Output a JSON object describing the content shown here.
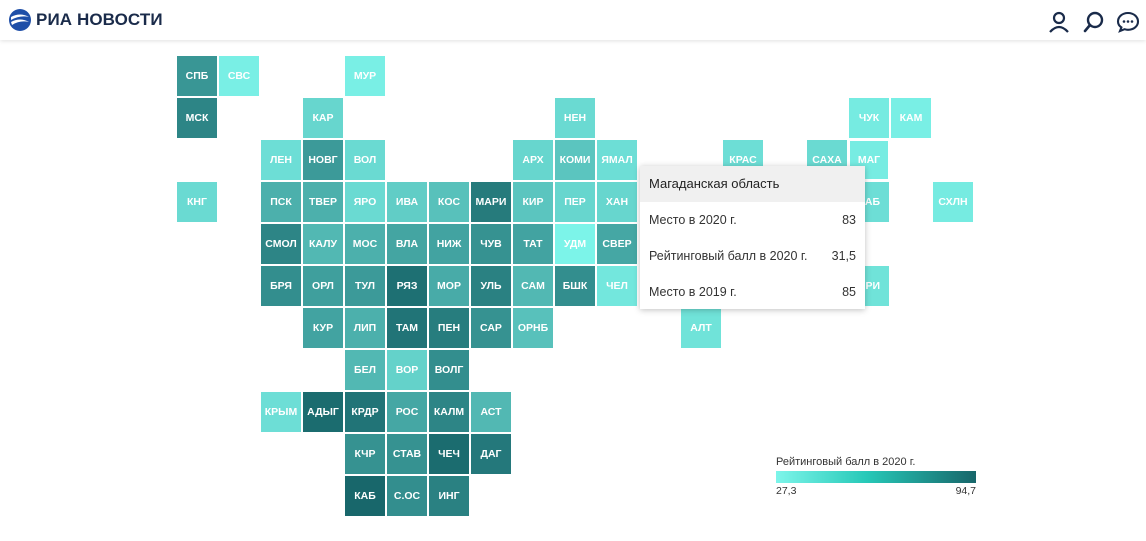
{
  "header": {
    "brand": "РИА НОВОСТИ",
    "icons": [
      "user-icon",
      "search-icon",
      "chat-icon"
    ]
  },
  "map": {
    "color_scale": {
      "min_color": "#7df5ea",
      "max_color": "#17666a",
      "min": 27.3,
      "max": 94.7
    },
    "regions": [
      {
        "label": "СПБ",
        "row": 0,
        "col": 0,
        "score": 72
      },
      {
        "label": "СВС",
        "row": 0,
        "col": 1,
        "score": 30
      },
      {
        "label": "МУР",
        "row": 0,
        "col": 4,
        "score": 30
      },
      {
        "label": "МСК",
        "row": 1,
        "col": 0,
        "score": 80
      },
      {
        "label": "КАР",
        "row": 1,
        "col": 3,
        "score": 42
      },
      {
        "label": "НЕН",
        "row": 1,
        "col": 9,
        "score": 40
      },
      {
        "label": "ЧУК",
        "row": 1,
        "col": 16,
        "score": 32
      },
      {
        "label": "КАМ",
        "row": 1,
        "col": 17,
        "score": 30
      },
      {
        "label": "ЛЕН",
        "row": 2,
        "col": 2,
        "score": 38
      },
      {
        "label": "НОВГ",
        "row": 2,
        "col": 3,
        "score": 70
      },
      {
        "label": "ВОЛ",
        "row": 2,
        "col": 4,
        "score": 40
      },
      {
        "label": "АРХ",
        "row": 2,
        "col": 8,
        "score": 42
      },
      {
        "label": "КОМИ",
        "row": 2,
        "col": 9,
        "score": 50
      },
      {
        "label": "ЯМАЛ",
        "row": 2,
        "col": 10,
        "score": 38
      },
      {
        "label": "КРАС",
        "row": 2,
        "col": 13,
        "score": 38
      },
      {
        "label": "САХА",
        "row": 2,
        "col": 15,
        "score": 40
      },
      {
        "label": "МАГ",
        "row": 2,
        "col": 16,
        "score": 31.5
      },
      {
        "label": "КНГ",
        "row": 3,
        "col": 0,
        "score": 40
      },
      {
        "label": "ПСК",
        "row": 3,
        "col": 2,
        "score": 60
      },
      {
        "label": "ТВЕР",
        "row": 3,
        "col": 3,
        "score": 60
      },
      {
        "label": "ЯРО",
        "row": 3,
        "col": 4,
        "score": 40
      },
      {
        "label": "ИВА",
        "row": 3,
        "col": 5,
        "score": 46
      },
      {
        "label": "КОС",
        "row": 3,
        "col": 6,
        "score": 52
      },
      {
        "label": "МАРИ",
        "row": 3,
        "col": 7,
        "score": 85
      },
      {
        "label": "КИР",
        "row": 3,
        "col": 8,
        "score": 50
      },
      {
        "label": "ПЕР",
        "row": 3,
        "col": 9,
        "score": 42
      },
      {
        "label": "ХАН",
        "row": 3,
        "col": 10,
        "score": 42
      },
      {
        "label": "ХАБ",
        "row": 3,
        "col": 16,
        "score": 38
      },
      {
        "label": "СХЛН",
        "row": 3,
        "col": 18,
        "score": 32
      },
      {
        "label": "СМОЛ",
        "row": 4,
        "col": 2,
        "score": 80
      },
      {
        "label": "КАЛУ",
        "row": 4,
        "col": 3,
        "score": 56
      },
      {
        "label": "МОС",
        "row": 4,
        "col": 4,
        "score": 60
      },
      {
        "label": "ВЛА",
        "row": 4,
        "col": 5,
        "score": 65
      },
      {
        "label": "НИЖ",
        "row": 4,
        "col": 6,
        "score": 66
      },
      {
        "label": "ЧУВ",
        "row": 4,
        "col": 7,
        "score": 74
      },
      {
        "label": "ТАТ",
        "row": 4,
        "col": 8,
        "score": 66
      },
      {
        "label": "УДМ",
        "row": 4,
        "col": 9,
        "score": 28
      },
      {
        "label": "СВЕР",
        "row": 4,
        "col": 10,
        "score": 64
      },
      {
        "label": "БРЯ",
        "row": 5,
        "col": 2,
        "score": 76
      },
      {
        "label": "ОРЛ",
        "row": 5,
        "col": 3,
        "score": 68
      },
      {
        "label": "ТУЛ",
        "row": 5,
        "col": 4,
        "score": 70
      },
      {
        "label": "РЯЗ",
        "row": 5,
        "col": 5,
        "score": 90
      },
      {
        "label": "МОР",
        "row": 5,
        "col": 6,
        "score": 62
      },
      {
        "label": "УЛЬ",
        "row": 5,
        "col": 7,
        "score": 82
      },
      {
        "label": "САМ",
        "row": 5,
        "col": 8,
        "score": 56
      },
      {
        "label": "БШК",
        "row": 5,
        "col": 9,
        "score": 76
      },
      {
        "label": "ЧЕЛ",
        "row": 5,
        "col": 10,
        "score": 34
      },
      {
        "label": "ПРИ",
        "row": 5,
        "col": 16,
        "score": 36
      },
      {
        "label": "КУР",
        "row": 6,
        "col": 3,
        "score": 66
      },
      {
        "label": "ЛИП",
        "row": 6,
        "col": 4,
        "score": 60
      },
      {
        "label": "ТАМ",
        "row": 6,
        "col": 5,
        "score": 88
      },
      {
        "label": "ПЕН",
        "row": 6,
        "col": 6,
        "score": 84
      },
      {
        "label": "САР",
        "row": 6,
        "col": 7,
        "score": 74
      },
      {
        "label": "ОРНБ",
        "row": 6,
        "col": 8,
        "score": 52
      },
      {
        "label": "АЛТ",
        "row": 6,
        "col": 12,
        "score": 36
      },
      {
        "label": "БЕЛ",
        "row": 7,
        "col": 4,
        "score": 56
      },
      {
        "label": "ВОР",
        "row": 7,
        "col": 5,
        "score": 44
      },
      {
        "label": "ВОЛГ",
        "row": 7,
        "col": 6,
        "score": 76
      },
      {
        "label": "КРЫМ",
        "row": 8,
        "col": 2,
        "score": 38
      },
      {
        "label": "АДЫГ",
        "row": 8,
        "col": 3,
        "score": 92
      },
      {
        "label": "КРДР",
        "row": 8,
        "col": 4,
        "score": 88
      },
      {
        "label": "РОС",
        "row": 8,
        "col": 5,
        "score": 64
      },
      {
        "label": "КАЛМ",
        "row": 8,
        "col": 6,
        "score": 80
      },
      {
        "label": "АСТ",
        "row": 8,
        "col": 7,
        "score": 56
      },
      {
        "label": "КЧР",
        "row": 9,
        "col": 4,
        "score": 74
      },
      {
        "label": "СТАВ",
        "row": 9,
        "col": 5,
        "score": 74
      },
      {
        "label": "ЧЕЧ",
        "row": 9,
        "col": 6,
        "score": 92
      },
      {
        "label": "ДАГ",
        "row": 9,
        "col": 7,
        "score": 86
      },
      {
        "label": "КАБ",
        "row": 10,
        "col": 4,
        "score": 94
      },
      {
        "label": "С.ОС",
        "row": 10,
        "col": 5,
        "score": 76
      },
      {
        "label": "ИНГ",
        "row": 10,
        "col": 6,
        "score": 82
      }
    ]
  },
  "tooltip": {
    "title": "Магаданская область",
    "rows": [
      {
        "label": "Место в 2020 г.",
        "value": "83"
      },
      {
        "label": "Рейтинговый балл в 2020 г.",
        "value": "31,5"
      },
      {
        "label": "Место в 2019 г.",
        "value": "85"
      }
    ]
  },
  "legend": {
    "title": "Рейтинговый балл в 2020 г.",
    "min_label": "27,3",
    "max_label": "94,7"
  }
}
